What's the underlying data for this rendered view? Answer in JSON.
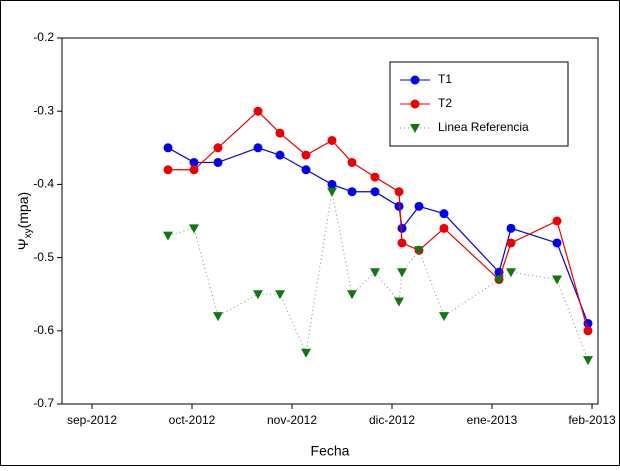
{
  "chart_data": {
    "type": "line",
    "x_label": "Fecha",
    "y_label": {
      "symbol": "Ψ",
      "subscript": "xy",
      "unit": "(mpa)"
    },
    "x": [
      0.76,
      1.02,
      1.26,
      1.66,
      1.88,
      2.14,
      2.4,
      2.6,
      2.83,
      3.07,
      3.1,
      3.27,
      3.52,
      4.07,
      4.19,
      4.65,
      4.96
    ],
    "series": [
      {
        "name": "T1",
        "color": "#0000ee",
        "marker": "circle",
        "line_style": "solid",
        "values": [
          -0.35,
          -0.37,
          -0.37,
          -0.35,
          -0.36,
          -0.38,
          -0.4,
          -0.41,
          -0.41,
          -0.43,
          -0.46,
          -0.43,
          -0.44,
          -0.52,
          -0.46,
          -0.48,
          -0.59
        ]
      },
      {
        "name": "T2",
        "color": "#ee0000",
        "marker": "circle",
        "line_style": "solid",
        "values": [
          -0.38,
          -0.38,
          -0.35,
          -0.3,
          -0.33,
          -0.36,
          -0.34,
          -0.37,
          -0.39,
          -0.41,
          -0.48,
          -0.49,
          -0.46,
          -0.53,
          -0.48,
          -0.45,
          -0.6
        ]
      },
      {
        "name": "Linea Referencia",
        "color": "#117711",
        "marker": "triangle-down",
        "line_style": "dotted",
        "values": [
          -0.47,
          -0.46,
          -0.58,
          -0.55,
          -0.55,
          -0.63,
          -0.41,
          -0.55,
          -0.52,
          -0.56,
          -0.52,
          -0.49,
          -0.58,
          -0.53,
          -0.52,
          -0.53,
          -0.64
        ]
      }
    ],
    "xlim": [
      -0.3,
      5.06
    ],
    "xticks": [
      {
        "value": 0,
        "label": "sep-2012"
      },
      {
        "value": 1,
        "label": "oct-2012"
      },
      {
        "value": 2,
        "label": "nov-2012"
      },
      {
        "value": 3,
        "label": "dic-2012"
      },
      {
        "value": 4,
        "label": "ene-2013"
      },
      {
        "value": 5,
        "label": "feb-2013"
      }
    ],
    "ylim": [
      -0.7,
      -0.2
    ],
    "yticks": [
      -0.7,
      -0.6,
      -0.5,
      -0.4,
      -0.3,
      -0.2
    ],
    "legend": "upper right"
  }
}
